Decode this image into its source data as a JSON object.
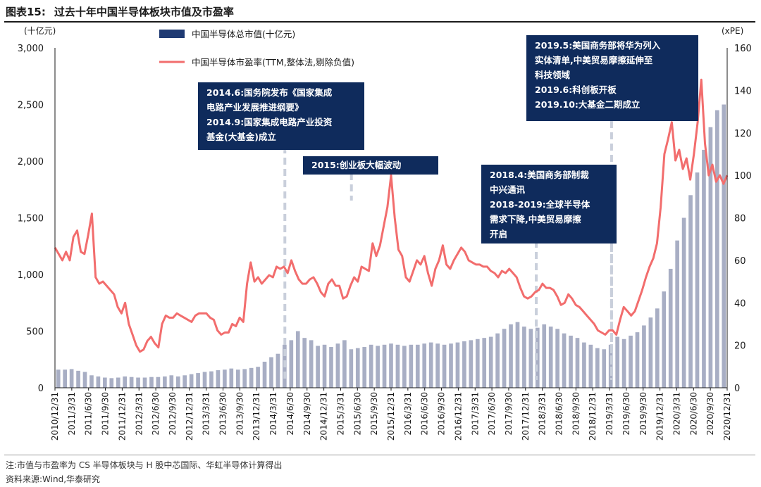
{
  "figure": {
    "number": "图表15:",
    "title": "过去十年中国半导体板块市值及市盈率"
  },
  "footer": {
    "note": "注:市值与市盈率为 CS 半导体板块与 H 股中芯国际、华虹半导体计算得出",
    "source": "资料来源:Wind,华泰研究"
  },
  "colors": {
    "bar": "#a8aec4",
    "line": "#f26d6d",
    "annotation_bg": "#0f2b5c",
    "dash": "#c9cfdb"
  },
  "chart_data": {
    "type": "bar+line",
    "left_axis": {
      "unit_label": "(十亿元)",
      "range": [
        0,
        3000
      ],
      "ticks": [
        "0",
        "500",
        "1,000",
        "1,500",
        "2,000",
        "2,500",
        "3,000"
      ]
    },
    "right_axis": {
      "unit_label": "(xPE)",
      "range": [
        0,
        160
      ],
      "ticks": [
        "0",
        "20",
        "40",
        "60",
        "80",
        "100",
        "120",
        "140",
        "160"
      ]
    },
    "x_tick_labels": [
      "2010/12/31",
      "2011/3/31",
      "2011/6/30",
      "2011/9/30",
      "2011/12/31",
      "2012/3/31",
      "2012/6/30",
      "2012/9/30",
      "2012/12/31",
      "2013/3/31",
      "2013/6/30",
      "2013/9/30",
      "2013/12/31",
      "2014/3/31",
      "2014/6/30",
      "2014/9/30",
      "2014/12/31",
      "2015/3/31",
      "2015/6/30",
      "2015/9/30",
      "2015/12/31",
      "2016/3/31",
      "2016/6/30",
      "2016/9/30",
      "2016/12/31",
      "2017/3/31",
      "2017/6/30",
      "2017/9/30",
      "2017/12/31",
      "2018/3/31",
      "2018/6/30",
      "2018/9/30",
      "2018/12/31",
      "2019/3/31",
      "2019/6/30",
      "2019/9/30",
      "2019/12/31",
      "2020/3/31",
      "2020/6/30",
      "2020/9/30",
      "2020/12/31"
    ],
    "series": [
      {
        "name": "中国半导体总市值(十亿元)",
        "type": "bar",
        "axis": "left",
        "values": [
          160,
          160,
          165,
          150,
          140,
          110,
          100,
          90,
          85,
          90,
          100,
          95,
          90,
          90,
          95,
          95,
          100,
          110,
          100,
          110,
          120,
          130,
          140,
          145,
          155,
          160,
          170,
          160,
          165,
          175,
          185,
          230,
          270,
          300,
          380,
          420,
          500,
          440,
          420,
          370,
          380,
          360,
          390,
          420,
          340,
          350,
          360,
          380,
          370,
          380,
          390,
          380,
          370,
          380,
          380,
          390,
          400,
          390,
          380,
          390,
          400,
          410,
          420,
          430,
          440,
          450,
          480,
          520,
          560,
          580,
          540,
          520,
          530,
          560,
          540,
          520,
          480,
          460,
          440,
          400,
          380,
          350,
          340,
          380,
          450,
          430,
          460,
          490,
          550,
          620,
          700,
          850,
          1050,
          1300,
          1500,
          1700,
          1900,
          2100,
          2300,
          2450,
          2500
        ]
      },
      {
        "name": "中国半导体市盈率(TTM,整体法,剔除负值)",
        "type": "line",
        "axis": "right",
        "values": [
          66,
          63,
          60,
          64,
          60,
          71,
          74,
          64,
          63,
          72,
          82,
          52,
          49,
          50,
          48,
          46,
          44,
          38,
          35,
          40,
          30,
          25,
          20,
          17,
          18,
          22,
          24,
          21,
          19,
          30,
          34,
          33,
          33,
          35,
          34,
          33,
          32,
          31,
          34,
          35,
          35,
          35,
          33,
          32,
          27,
          25,
          26,
          26,
          30,
          29,
          33,
          31,
          49,
          59,
          50,
          52,
          49,
          51,
          53,
          52,
          57,
          56,
          57,
          54,
          60,
          55,
          51,
          49,
          49,
          51,
          52,
          49,
          45,
          43,
          49,
          51,
          48,
          48,
          42,
          43,
          48,
          52,
          50,
          57,
          56,
          55,
          68,
          62,
          67,
          76,
          85,
          100,
          80,
          65,
          62,
          52,
          50,
          55,
          60,
          58,
          62,
          54,
          48,
          56,
          60,
          67,
          58,
          56,
          60,
          63,
          66,
          64,
          60,
          59,
          58,
          58,
          57,
          57,
          55,
          54,
          52,
          55,
          54,
          56,
          54,
          52,
          47,
          43,
          42,
          43,
          45,
          46,
          49,
          47,
          47,
          46,
          43,
          39,
          40,
          44,
          42,
          39,
          38,
          36,
          34,
          32,
          30,
          27,
          26,
          25,
          27,
          27,
          25,
          32,
          38,
          36,
          34,
          36,
          41,
          46,
          52,
          57,
          61,
          68,
          85,
          110,
          117,
          125,
          107,
          112,
          103,
          108,
          98,
          110,
          125,
          145,
          115,
          100,
          105,
          97,
          100,
          96,
          100
        ]
      }
    ],
    "annotations": [
      {
        "text": "2014.6:国务院发布《国家集成\n电路产业发展推进纲要》\n2014.9:国家集成电路产业投资\n基金(大基金)成立",
        "x_frac": 0.355
      },
      {
        "text": "2015:创业板大幅波动",
        "x_frac": 0.445
      },
      {
        "text": "2018.4:美国商务部制裁\n中兴通讯\n2018-2019:全球半导体\n需求下降,中美贸易摩擦\n开启",
        "x_frac": 0.712
      },
      {
        "text": "2019.5:美国商务部将华为列入\n实体清单,中美贸易摩擦延伸至\n科技领域\n2019.6:科创板开板\n2019.10:大基金二期成立",
        "x_frac": 0.83
      }
    ]
  }
}
